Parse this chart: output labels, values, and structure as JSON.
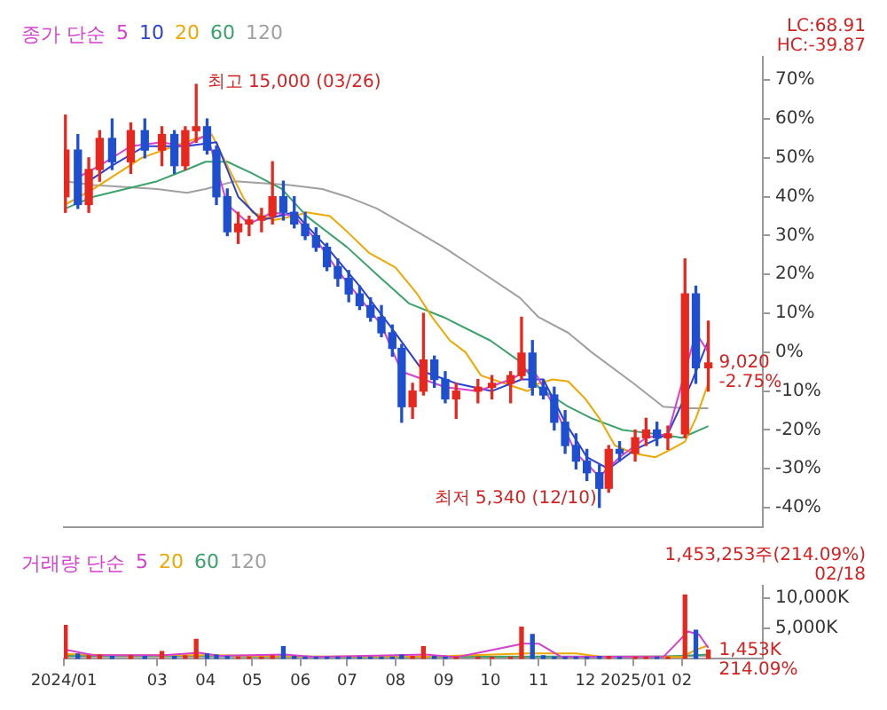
{
  "chart_data": [
    {
      "type": "candlestick",
      "legend_title": "종가 단순",
      "legend": "top left",
      "grid": false,
      "tick_labels": "y",
      "marker": "none",
      "x": [
        "2024-01-02",
        "2024-01-10",
        "2024-01-17",
        "2024-01-24",
        "2024-02-01",
        "2024-02-13",
        "2024-02-22",
        "2024-03-04",
        "2024-03-12",
        "2024-03-19",
        "2024-03-26",
        "2024-04-02",
        "2024-04-08",
        "2024-04-15",
        "2024-04-22",
        "2024-04-29",
        "2024-05-07",
        "2024-05-14",
        "2024-05-21",
        "2024-05-28",
        "2024-06-04",
        "2024-06-11",
        "2024-06-18",
        "2024-06-25",
        "2024-07-02",
        "2024-07-09",
        "2024-07-16",
        "2024-07-23",
        "2024-07-30",
        "2024-08-05",
        "2024-08-12",
        "2024-08-19",
        "2024-08-26",
        "2024-09-02",
        "2024-09-09",
        "2024-09-23",
        "2024-10-02",
        "2024-10-14",
        "2024-10-21",
        "2024-10-28",
        "2024-11-04",
        "2024-11-11",
        "2024-11-18",
        "2024-11-25",
        "2024-12-02",
        "2024-12-10",
        "2024-12-16",
        "2024-12-23",
        "2025-01-02",
        "2025-01-09",
        "2025-01-16",
        "2025-01-23",
        "2025-02-03",
        "2025-02-10",
        "2025-02-18"
      ],
      "ohlc": [
        [
          40,
          61,
          36,
          52
        ],
        [
          52,
          56,
          37,
          38
        ],
        [
          38,
          50,
          36,
          47
        ],
        [
          47,
          57,
          44,
          55
        ],
        [
          55,
          60,
          47,
          49
        ],
        [
          49,
          59,
          46,
          57
        ],
        [
          57,
          60,
          50,
          52
        ],
        [
          52,
          58,
          48,
          56
        ],
        [
          56,
          57,
          46,
          48
        ],
        [
          48,
          58,
          47,
          57
        ],
        [
          57,
          68.9,
          54,
          58
        ],
        [
          58,
          60,
          51,
          52
        ],
        [
          52,
          53,
          38,
          40
        ],
        [
          40,
          42,
          30,
          31
        ],
        [
          31,
          36,
          28,
          33
        ],
        [
          33,
          35,
          30,
          34
        ],
        [
          34,
          37,
          31,
          35
        ],
        [
          35,
          49,
          33,
          40
        ],
        [
          40,
          44,
          34,
          36
        ],
        [
          36,
          40,
          32,
          33
        ],
        [
          33,
          36,
          29,
          30
        ],
        [
          30,
          32,
          26,
          27
        ],
        [
          27,
          28,
          21,
          22
        ],
        [
          22,
          24,
          17,
          19
        ],
        [
          19,
          21,
          13,
          15
        ],
        [
          15,
          17,
          11,
          12
        ],
        [
          12,
          14,
          8,
          9
        ],
        [
          9,
          12,
          4,
          5
        ],
        [
          5,
          7,
          -1,
          1
        ],
        [
          1,
          2,
          -18,
          -14
        ],
        [
          -14,
          -8,
          -17,
          -10
        ],
        [
          -10,
          10,
          -11,
          -2
        ],
        [
          -2,
          -1,
          -9,
          -7
        ],
        [
          -7,
          -5,
          -13,
          -12
        ],
        [
          -12,
          -8,
          -17,
          -10
        ],
        [
          -10,
          -7,
          -13,
          -9
        ],
        [
          -9,
          -6,
          -12,
          -8
        ],
        [
          -8,
          -5,
          -13,
          -6
        ],
        [
          -6,
          9,
          -7,
          0
        ],
        [
          0,
          3,
          -11,
          -9
        ],
        [
          -9,
          -7,
          -12,
          -11
        ],
        [
          -11,
          -9,
          -20,
          -18
        ],
        [
          -18,
          -15,
          -26,
          -24
        ],
        [
          -24,
          -21,
          -30,
          -28
        ],
        [
          -28,
          -25,
          -33,
          -31
        ],
        [
          -31,
          -29,
          -39.9,
          -35
        ],
        [
          -35,
          -24,
          -36,
          -25
        ],
        [
          -25,
          -23,
          -28,
          -26
        ],
        [
          -26,
          -20,
          -28,
          -22
        ],
        [
          -22,
          -17,
          -24,
          -20
        ],
        [
          -20,
          -18,
          -24,
          -22
        ],
        [
          -22,
          -19,
          -25,
          -21
        ],
        [
          -21,
          24,
          -22,
          15
        ],
        [
          15,
          17,
          -8,
          -4
        ],
        [
          -4,
          8,
          -10,
          -2.75
        ]
      ],
      "series": [
        {
          "name": "5",
          "color": "#d63fcf",
          "type": "line",
          "x": [
            "2024-01-10",
            "2024-01-24",
            "2024-02-13",
            "2024-03-04",
            "2024-03-19",
            "2024-04-02",
            "2024-04-15",
            "2024-04-29",
            "2024-05-14",
            "2024-05-28",
            "2024-06-11",
            "2024-06-25",
            "2024-07-09",
            "2024-07-23",
            "2024-08-05",
            "2024-08-19",
            "2024-09-02",
            "2024-09-23",
            "2024-10-14",
            "2024-10-28",
            "2024-11-11",
            "2024-11-25",
            "2024-12-10",
            "2024-12-23",
            "2025-01-09",
            "2025-01-23",
            "2025-02-03",
            "2025-02-10",
            "2025-02-18"
          ],
          "values": [
            45,
            48,
            53,
            54,
            53,
            56,
            38,
            33,
            36,
            35,
            29,
            21,
            14,
            7,
            -5,
            -7,
            -9,
            -10,
            -7,
            -4,
            -14,
            -26,
            -32,
            -27,
            -22,
            -21,
            null,
            5,
            0
          ]
        },
        {
          "name": "10",
          "color": "#2b3fd6",
          "type": "line",
          "x": [
            "2024-01-17",
            "2024-02-01",
            "2024-02-22",
            "2024-03-19",
            "2024-04-08",
            "2024-04-22",
            "2024-05-07",
            "2024-05-28",
            "2024-06-18",
            "2024-07-09",
            "2024-07-30",
            "2024-08-19",
            "2024-09-09",
            "2024-10-02",
            "2024-10-21",
            "2024-11-04",
            "2024-11-18",
            "2024-12-02",
            "2024-12-16",
            "2025-01-02",
            "2025-01-23",
            "2025-02-07",
            "2025-02-18"
          ],
          "values": [
            44,
            48,
            53,
            53,
            54,
            40,
            34,
            36,
            27,
            17,
            6,
            -5,
            -8,
            -10,
            -7,
            -7,
            -18,
            -27,
            -30,
            -25,
            -21,
            -8,
            3
          ]
        },
        {
          "name": "20",
          "color": "#f0a800",
          "type": "line",
          "x": [
            "2024-01-02",
            "2024-01-20",
            "2024-02-20",
            "2024-03-26",
            "2024-04-05",
            "2024-04-15",
            "2024-04-25",
            "2024-05-01",
            "2024-05-15",
            "2024-05-28",
            "2024-06-05",
            "2024-06-20",
            "2024-07-01",
            "2024-07-15",
            "2024-08-01",
            "2024-08-15",
            "2024-08-25",
            "2024-09-05",
            "2024-09-15",
            "2024-09-25",
            "2024-10-10",
            "2024-10-25",
            "2024-11-01",
            "2024-11-10",
            "2024-11-20",
            "2024-12-01",
            "2024-12-10",
            "2024-12-20",
            "2025-01-01",
            "2025-01-15",
            "2025-01-25",
            "2025-02-03",
            "2025-02-10",
            "2025-02-18"
          ],
          "values": [
            38,
            42,
            50,
            55,
            56,
            48,
            40,
            36,
            34,
            35,
            36,
            35,
            31,
            25.6,
            21.8,
            15,
            8.8,
            3,
            0,
            -6,
            -8,
            -10,
            -8,
            -7,
            -7.5,
            -12,
            -17,
            -24,
            -26,
            -27,
            -25,
            -23,
            -17,
            -8
          ]
        },
        {
          "name": "60",
          "color": "#3aa36b",
          "type": "line",
          "x": [
            "2024-01-02",
            "2024-01-20",
            "2024-03-01",
            "2024-03-20",
            "2024-04-01",
            "2024-04-15",
            "2024-05-01",
            "2024-05-20",
            "2024-06-05",
            "2024-07-01",
            "2024-07-20",
            "2024-08-10",
            "2024-09-01",
            "2024-10-01",
            "2024-10-20",
            "2024-11-01",
            "2024-11-20",
            "2024-12-05",
            "2024-12-25",
            "2025-01-15",
            "2025-02-01",
            "2025-02-18"
          ],
          "values": [
            37,
            40,
            44,
            47,
            49,
            49,
            46,
            42,
            35,
            27,
            20,
            12.5,
            9,
            3,
            -2.4,
            -9,
            -14,
            -17,
            -20,
            -21,
            -22,
            -19
          ]
        },
        {
          "name": "120",
          "color": "#a0a0a0",
          "type": "line",
          "x": [
            "2024-01-02",
            "2024-01-20",
            "2024-03-01",
            "2024-03-20",
            "2024-04-01",
            "2024-04-20",
            "2024-05-25",
            "2024-06-15",
            "2024-07-01",
            "2024-07-20",
            "2024-08-15",
            "2024-09-01",
            "2024-09-20",
            "2024-10-20",
            "2024-11-01",
            "2024-11-20",
            "2024-12-05",
            "2025-01-01",
            "2025-01-20",
            "2025-02-03",
            "2025-02-18"
          ],
          "values": [
            44,
            43,
            42,
            41,
            42,
            44,
            43,
            42,
            40,
            37,
            31,
            27,
            22,
            14,
            9,
            5,
            0,
            -8,
            -14,
            -14.4,
            -14.4
          ]
        }
      ],
      "xlim": [
        "2024-01-01",
        "2025-03-25"
      ],
      "xticks": [
        {
          "value": "2024-01",
          "label": null
        },
        {
          "value": "2024-03",
          "label": null
        },
        {
          "value": "2024-04",
          "label": null
        },
        {
          "value": "2024-05",
          "label": null
        },
        {
          "value": "2024-06",
          "label": null
        },
        {
          "value": "2024-07",
          "label": null
        },
        {
          "value": "2024-08",
          "label": null
        },
        {
          "value": "2024-09",
          "label": null
        },
        {
          "value": "2024-10",
          "label": null
        },
        {
          "value": "2024-11",
          "label": null
        },
        {
          "value": "2024-12",
          "label": null
        },
        {
          "value": "2025-01",
          "label": null
        },
        {
          "value": "2025-02",
          "label": null
        }
      ],
      "ylim": [
        -45,
        76
      ],
      "yticks": [
        {
          "value": -40,
          "label": "-40%"
        },
        {
          "value": -30,
          "label": "-30%"
        },
        {
          "value": -20,
          "label": "-20%"
        },
        {
          "value": -10,
          "label": "-10%"
        },
        {
          "value": 0,
          "label": "0%"
        },
        {
          "value": 10,
          "label": "10%"
        },
        {
          "value": 20,
          "label": "20%"
        },
        {
          "value": 30,
          "label": "30%"
        },
        {
          "value": 40,
          "label": "40%"
        },
        {
          "value": 50,
          "label": "50%"
        },
        {
          "value": 60,
          "label": "60%"
        },
        {
          "value": 70,
          "label": "70%"
        }
      ],
      "annotations": [
        "LC:68.91",
        "HC:-39.87",
        "최고 15,000 (03/26)",
        "최저 5,340 (12/10)",
        {
          "text": "9,020",
          "x": "2025-02-18",
          "y": -2.75
        },
        {
          "text": "-2.75%",
          "x": "2025-02-18",
          "y": -2.75
        }
      ]
    },
    {
      "type": "bar",
      "legend_title": "거래량 단순",
      "legend": "top left",
      "grid": false,
      "marker": "none",
      "x": [
        "2024-01-02",
        "2024-01-10",
        "2024-01-17",
        "2024-01-24",
        "2024-02-01",
        "2024-02-13",
        "2024-02-22",
        "2024-03-04",
        "2024-03-12",
        "2024-03-19",
        "2024-03-26",
        "2024-04-02",
        "2024-04-08",
        "2024-04-15",
        "2024-04-22",
        "2024-04-29",
        "2024-05-07",
        "2024-05-14",
        "2024-05-21",
        "2024-05-28",
        "2024-06-04",
        "2024-06-11",
        "2024-06-18",
        "2024-06-25",
        "2024-07-02",
        "2024-07-09",
        "2024-07-16",
        "2024-07-23",
        "2024-07-30",
        "2024-08-05",
        "2024-08-12",
        "2024-08-19",
        "2024-08-26",
        "2024-09-02",
        "2024-09-09",
        "2024-09-23",
        "2024-10-02",
        "2024-10-14",
        "2024-10-21",
        "2024-10-28",
        "2024-11-04",
        "2024-11-11",
        "2024-11-18",
        "2024-11-25",
        "2024-12-02",
        "2024-12-10",
        "2024-12-16",
        "2024-12-23",
        "2025-01-02",
        "2025-01-09",
        "2025-01-16",
        "2025-01-23",
        "2025-02-03",
        "2025-02-10",
        "2025-02-18"
      ],
      "values": [
        5500,
        800,
        500,
        600,
        400,
        500,
        400,
        1200,
        400,
        500,
        3200,
        800,
        600,
        400,
        300,
        300,
        300,
        500,
        2000,
        400,
        300,
        300,
        300,
        300,
        300,
        300,
        300,
        300,
        300,
        600,
        400,
        2000,
        400,
        300,
        300,
        300,
        300,
        300,
        5200,
        4000,
        500,
        300,
        300,
        300,
        300,
        400,
        400,
        300,
        300,
        300,
        300,
        300,
        10500,
        4700,
        1453
      ],
      "colors": [
        "#e8281e",
        "#1f4fd1",
        "#e8281e",
        "#e8281e",
        "#1f4fd1",
        "#e8281e",
        "#1f4fd1",
        "#e8281e",
        "#1f4fd1",
        "#e8281e",
        "#e8281e",
        "#1f4fd1",
        "#1f4fd1",
        "#1f4fd1",
        "#e8281e",
        "#e8281e",
        "#e8281e",
        "#e8281e",
        "#1f4fd1",
        "#1f4fd1",
        "#1f4fd1",
        "#1f4fd1",
        "#1f4fd1",
        "#1f4fd1",
        "#1f4fd1",
        "#1f4fd1",
        "#1f4fd1",
        "#1f4fd1",
        "#1f4fd1",
        "#1f4fd1",
        "#e8281e",
        "#e8281e",
        "#1f4fd1",
        "#1f4fd1",
        "#e8281e",
        "#e8281e",
        "#e8281e",
        "#e8281e",
        "#e8281e",
        "#1f4fd1",
        "#1f4fd1",
        "#1f4fd1",
        "#1f4fd1",
        "#1f4fd1",
        "#1f4fd1",
        "#1f4fd1",
        "#e8281e",
        "#1f4fd1",
        "#e8281e",
        "#e8281e",
        "#1f4fd1",
        "#e8281e",
        "#e8281e",
        "#1f4fd1",
        "#e8281e"
      ],
      "series": [
        {
          "name": "5",
          "color": "#d63fcf",
          "type": "line",
          "x": [
            "2024-01-02",
            "2024-01-20",
            "2024-03-05",
            "2024-03-28",
            "2024-04-10",
            "2024-05-22",
            "2024-06-10",
            "2024-08-20",
            "2024-09-10",
            "2024-10-22",
            "2024-11-01",
            "2024-11-15",
            "2025-01-20",
            "2025-02-05",
            "2025-02-12",
            "2025-02-18"
          ],
          "values": [
            1500,
            600,
            600,
            1000,
            500,
            700,
            300,
            700,
            300,
            2500,
            2500,
            400,
            300,
            4500,
            4000,
            1800
          ]
        },
        {
          "name": "20",
          "color": "#f0a800",
          "type": "line",
          "x": [
            "2024-01-02",
            "2024-02-01",
            "2024-04-01",
            "2024-06-01",
            "2024-08-25",
            "2024-10-25",
            "2024-11-25",
            "2024-12-10",
            "2025-02-01",
            "2025-02-10",
            "2025-02-18"
          ],
          "values": [
            800,
            600,
            600,
            400,
            400,
            900,
            900,
            400,
            300,
            1500,
            2200
          ]
        },
        {
          "name": "60",
          "color": "#3aa36b",
          "type": "line",
          "x": [
            "2024-01-02",
            "2024-04-01",
            "2024-07-01",
            "2024-11-01",
            "2025-01-15",
            "2025-02-18"
          ],
          "values": [
            500,
            500,
            300,
            400,
            300,
            700
          ]
        },
        {
          "name": "120",
          "color": "#a0a0a0",
          "type": "line",
          "x": [
            "2024-01-02",
            "2024-06-01",
            "2024-10-01",
            "2025-02-18"
          ],
          "values": [
            400,
            400,
            300,
            500
          ]
        }
      ],
      "xlim": [
        "2024-01-01",
        "2025-03-25"
      ],
      "xticks": [
        {
          "value": "2024-01",
          "label": "2024/01"
        },
        {
          "value": "2024-03",
          "label": "03"
        },
        {
          "value": "2024-04",
          "label": "04"
        },
        {
          "value": "2024-05",
          "label": "05"
        },
        {
          "value": "2024-06",
          "label": "06"
        },
        {
          "value": "2024-07",
          "label": "07"
        },
        {
          "value": "2024-08",
          "label": "08"
        },
        {
          "value": "2024-09",
          "label": "09"
        },
        {
          "value": "2024-10",
          "label": "10"
        },
        {
          "value": "2024-11",
          "label": "11"
        },
        {
          "value": "2024-12",
          "label": "12"
        },
        {
          "value": "2025-01",
          "label": "2025/01"
        },
        {
          "value": "2025-02",
          "label": "02"
        }
      ],
      "ylim": [
        0,
        12000
      ],
      "yticks": [
        {
          "value": 5000,
          "label": "5,000K"
        },
        {
          "value": 10000,
          "label": "10,000K"
        }
      ],
      "annotations": [
        "1,453,253주(214.09%)",
        "02/18",
        {
          "text": "1,453K",
          "x": "2025-02-18",
          "y": 1453
        },
        {
          "text": "214.09%",
          "x": "2025-02-18",
          "y": 1453
        }
      ]
    }
  ]
}
